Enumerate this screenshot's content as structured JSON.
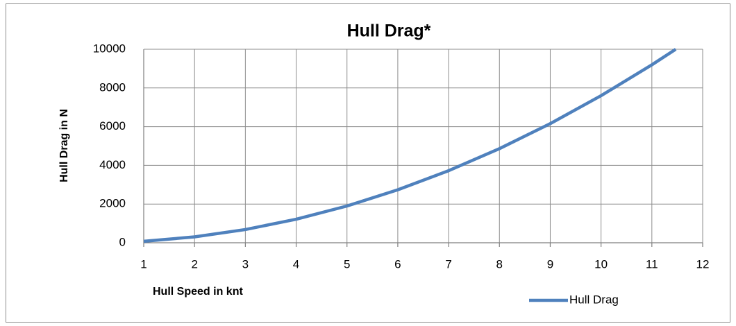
{
  "chart_data": {
    "type": "line",
    "title": "Hull Drag*",
    "x_label": "Hull Speed in knt",
    "y_label": "Hull Drag in N",
    "x": [
      1,
      2,
      3,
      4,
      5,
      6,
      7,
      8,
      9,
      10,
      11,
      11.47
    ],
    "series": [
      {
        "name": "Hull Drag",
        "color": "#4f81bd",
        "values": [
          76,
          304,
          684,
          1216,
          1900,
          2736,
          3724,
          4864,
          6156,
          7600,
          9196,
          10000
        ]
      }
    ],
    "xlim": [
      1,
      12
    ],
    "xticks": [
      1,
      2,
      3,
      4,
      5,
      6,
      7,
      8,
      9,
      10,
      11,
      12
    ],
    "ylim": [
      0,
      10000
    ],
    "yticks": [
      0,
      2000,
      4000,
      6000,
      8000,
      10000
    ],
    "grid": true,
    "legend": "bottom-right"
  }
}
